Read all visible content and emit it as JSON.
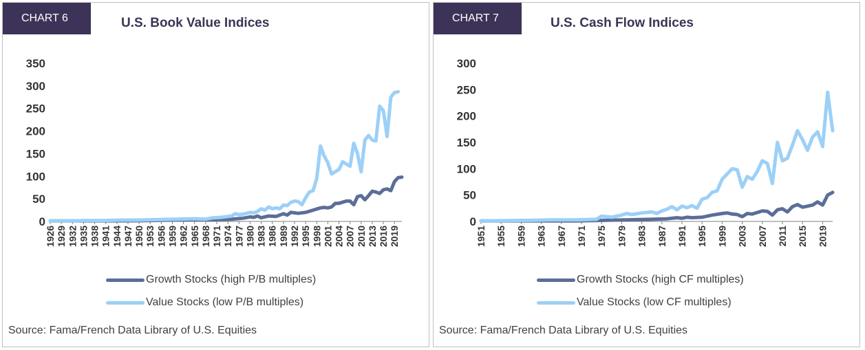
{
  "colors": {
    "badge_bg": "#3d3358",
    "growth": "#5b6e99",
    "value": "#9cd0f7",
    "axis": "#7f7f7f"
  },
  "chart_data": [
    {
      "type": "line",
      "badge": "CHART 6",
      "title": "U.S. Book Value Indices",
      "source": "Source: Fama/French Data Library of U.S. Equities",
      "x_start": 1926,
      "x_end": 2021,
      "ylim": [
        0,
        350
      ],
      "yticks": [
        "0",
        "50",
        "100",
        "150",
        "200",
        "250",
        "300",
        "350"
      ],
      "xticks": [
        "1926",
        "1929",
        "1932",
        "1935",
        "1938",
        "1941",
        "1944",
        "1947",
        "1950",
        "1953",
        "1956",
        "1959",
        "1962",
        "1965",
        "1968",
        "1971",
        "1974",
        "1977",
        "1980",
        "1983",
        "1986",
        "1989",
        "1992",
        "1995",
        "1998",
        "2001",
        "2004",
        "2007",
        "2010",
        "2013",
        "2016",
        "2019"
      ],
      "legend_placement": "bottom",
      "series": [
        {
          "name": "Growth Stocks (high P/B multiples)",
          "color_key": "growth",
          "points": [
            [
              1926,
              1
            ],
            [
              1940,
              1
            ],
            [
              1950,
              1.5
            ],
            [
              1960,
              3
            ],
            [
              1965,
              4
            ],
            [
              1970,
              4
            ],
            [
              1975,
              5
            ],
            [
              1978,
              7
            ],
            [
              1980,
              10
            ],
            [
              1981,
              9
            ],
            [
              1982,
              12
            ],
            [
              1983,
              8
            ],
            [
              1985,
              12
            ],
            [
              1987,
              11
            ],
            [
              1989,
              17
            ],
            [
              1990,
              14
            ],
            [
              1991,
              20
            ],
            [
              1993,
              18
            ],
            [
              1995,
              20
            ],
            [
              1997,
              25
            ],
            [
              1999,
              30
            ],
            [
              2000,
              31
            ],
            [
              2001,
              30
            ],
            [
              2002,
              32
            ],
            [
              2003,
              40
            ],
            [
              2004,
              40
            ],
            [
              2006,
              45
            ],
            [
              2007,
              45
            ],
            [
              2008,
              37
            ],
            [
              2009,
              55
            ],
            [
              2010,
              57
            ],
            [
              2011,
              48
            ],
            [
              2012,
              57
            ],
            [
              2013,
              67
            ],
            [
              2014,
              65
            ],
            [
              2015,
              62
            ],
            [
              2016,
              70
            ],
            [
              2017,
              72
            ],
            [
              2018,
              68
            ],
            [
              2019,
              88
            ],
            [
              2020,
              97
            ],
            [
              2021,
              98
            ]
          ]
        },
        {
          "name": "Value Stocks (low P/B multiples)",
          "color_key": "value",
          "points": [
            [
              1926,
              1
            ],
            [
              1932,
              1
            ],
            [
              1935,
              2
            ],
            [
              1940,
              2
            ],
            [
              1945,
              3
            ],
            [
              1950,
              3
            ],
            [
              1955,
              4
            ],
            [
              1960,
              5
            ],
            [
              1965,
              6
            ],
            [
              1968,
              5
            ],
            [
              1970,
              8
            ],
            [
              1972,
              9
            ],
            [
              1975,
              12
            ],
            [
              1976,
              17
            ],
            [
              1977,
              15
            ],
            [
              1978,
              16
            ],
            [
              1979,
              18
            ],
            [
              1980,
              20
            ],
            [
              1981,
              19
            ],
            [
              1982,
              22
            ],
            [
              1983,
              28
            ],
            [
              1984,
              25
            ],
            [
              1985,
              32
            ],
            [
              1986,
              28
            ],
            [
              1987,
              30
            ],
            [
              1988,
              28
            ],
            [
              1989,
              36
            ],
            [
              1990,
              35
            ],
            [
              1991,
              42
            ],
            [
              1992,
              45
            ],
            [
              1993,
              44
            ],
            [
              1994,
              37
            ],
            [
              1995,
              52
            ],
            [
              1996,
              65
            ],
            [
              1997,
              68
            ],
            [
              1998,
              95
            ],
            [
              1999,
              167
            ],
            [
              2000,
              145
            ],
            [
              2001,
              130
            ],
            [
              2002,
              105
            ],
            [
              2003,
              110
            ],
            [
              2004,
              115
            ],
            [
              2005,
              132
            ],
            [
              2006,
              127
            ],
            [
              2007,
              122
            ],
            [
              2008,
              173
            ],
            [
              2009,
              150
            ],
            [
              2010,
              110
            ],
            [
              2011,
              180
            ],
            [
              2012,
              190
            ],
            [
              2013,
              180
            ],
            [
              2014,
              178
            ],
            [
              2015,
              255
            ],
            [
              2016,
              245
            ],
            [
              2017,
              188
            ],
            [
              2018,
              275
            ],
            [
              2019,
              285
            ],
            [
              2020,
              287
            ]
          ]
        }
      ]
    },
    {
      "type": "line",
      "badge": "CHART 7",
      "title": "U.S. Cash Flow Indices",
      "source": "Source: Fama/French Data Library of U.S. Equities",
      "x_start": 1951,
      "x_end": 2021,
      "ylim": [
        0,
        300
      ],
      "yticks": [
        "0",
        "50",
        "100",
        "150",
        "200",
        "250",
        "300"
      ],
      "xticks": [
        "1951",
        "1955",
        "1959",
        "1963",
        "1967",
        "1971",
        "1975",
        "1979",
        "1983",
        "1987",
        "1991",
        "1995",
        "1999",
        "2003",
        "2007",
        "2011",
        "2015",
        "2019"
      ],
      "legend_placement": "bottom",
      "series": [
        {
          "name": "Growth Stocks (high CF multiples)",
          "color_key": "growth",
          "points": [
            [
              1951,
              1
            ],
            [
              1960,
              1
            ],
            [
              1970,
              1
            ],
            [
              1975,
              2
            ],
            [
              1980,
              3
            ],
            [
              1985,
              4
            ],
            [
              1988,
              5
            ],
            [
              1990,
              7
            ],
            [
              1991,
              6
            ],
            [
              1992,
              8
            ],
            [
              1993,
              7
            ],
            [
              1995,
              8
            ],
            [
              1997,
              12
            ],
            [
              1999,
              15
            ],
            [
              2000,
              16
            ],
            [
              2001,
              14
            ],
            [
              2002,
              13
            ],
            [
              2003,
              9
            ],
            [
              2004,
              15
            ],
            [
              2005,
              14
            ],
            [
              2006,
              17
            ],
            [
              2007,
              20
            ],
            [
              2008,
              19
            ],
            [
              2009,
              12
            ],
            [
              2010,
              22
            ],
            [
              2011,
              24
            ],
            [
              2012,
              18
            ],
            [
              2013,
              28
            ],
            [
              2014,
              32
            ],
            [
              2015,
              27
            ],
            [
              2016,
              29
            ],
            [
              2017,
              31
            ],
            [
              2018,
              37
            ],
            [
              2019,
              31
            ],
            [
              2020,
              50
            ],
            [
              2021,
              55
            ]
          ]
        },
        {
          "name": "Value Stocks (low CF multiples)",
          "color_key": "value",
          "points": [
            [
              1951,
              1
            ],
            [
              1960,
              2
            ],
            [
              1965,
              3
            ],
            [
              1970,
              3
            ],
            [
              1974,
              4
            ],
            [
              1975,
              10
            ],
            [
              1977,
              8
            ],
            [
              1979,
              12
            ],
            [
              1980,
              15
            ],
            [
              1981,
              13
            ],
            [
              1983,
              16
            ],
            [
              1985,
              18
            ],
            [
              1986,
              15
            ],
            [
              1987,
              20
            ],
            [
              1988,
              23
            ],
            [
              1989,
              28
            ],
            [
              1990,
              22
            ],
            [
              1991,
              29
            ],
            [
              1992,
              26
            ],
            [
              1993,
              30
            ],
            [
              1994,
              25
            ],
            [
              1995,
              42
            ],
            [
              1996,
              45
            ],
            [
              1997,
              55
            ],
            [
              1998,
              58
            ],
            [
              1999,
              80
            ],
            [
              2000,
              90
            ],
            [
              2001,
              100
            ],
            [
              2002,
              98
            ],
            [
              2003,
              65
            ],
            [
              2004,
              85
            ],
            [
              2005,
              80
            ],
            [
              2006,
              95
            ],
            [
              2007,
              115
            ],
            [
              2008,
              110
            ],
            [
              2009,
              72
            ],
            [
              2010,
              150
            ],
            [
              2011,
              115
            ],
            [
              2012,
              120
            ],
            [
              2013,
              145
            ],
            [
              2014,
              172
            ],
            [
              2015,
              155
            ],
            [
              2016,
              135
            ],
            [
              2017,
              160
            ],
            [
              2018,
              170
            ],
            [
              2019,
              142
            ],
            [
              2020,
              245
            ],
            [
              2021,
              172
            ]
          ]
        }
      ]
    }
  ]
}
